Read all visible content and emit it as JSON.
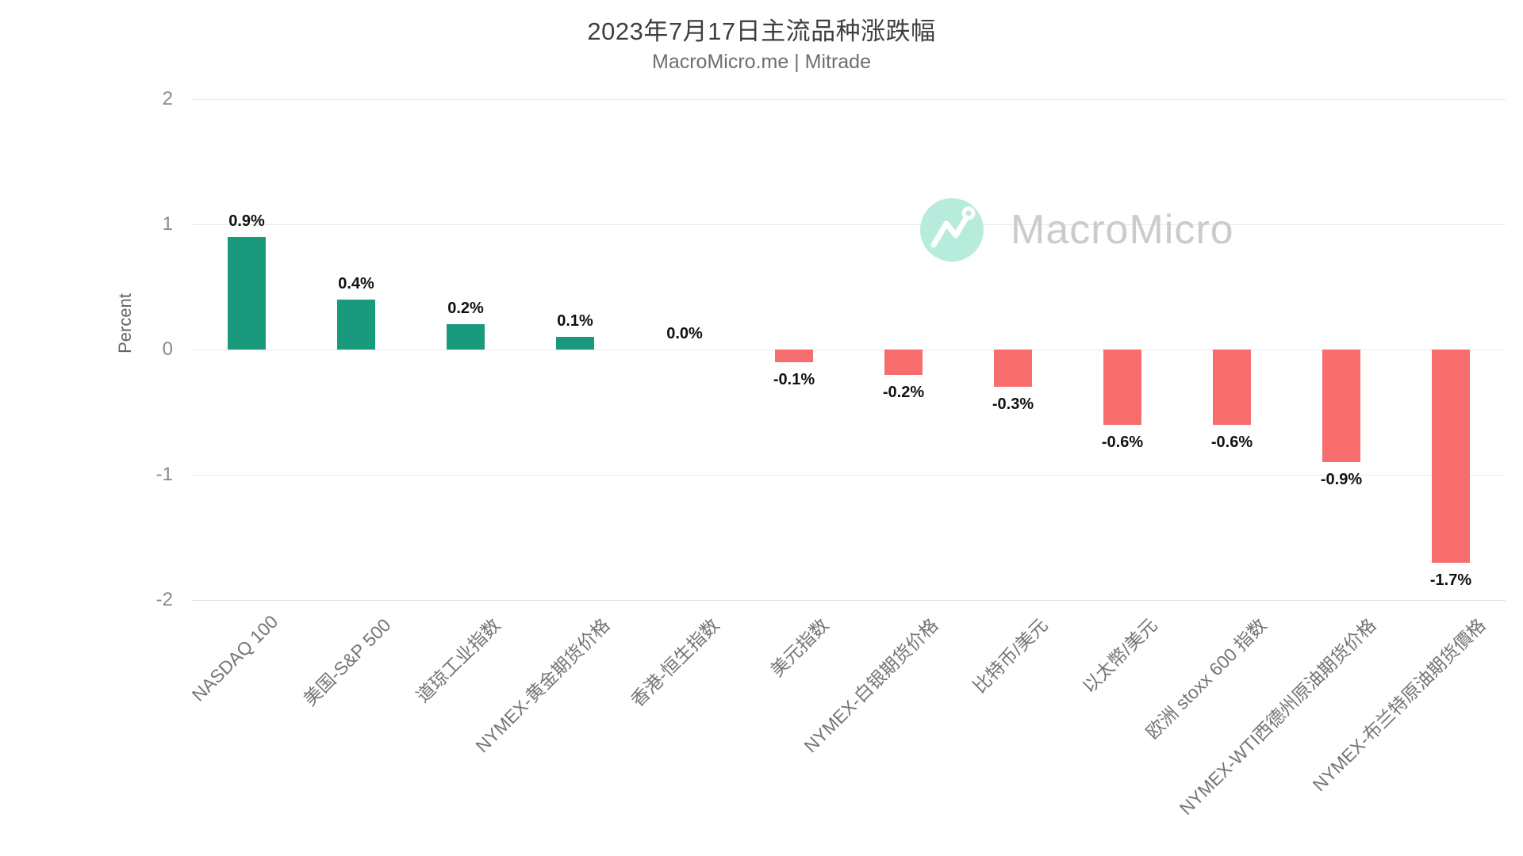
{
  "header": {
    "title": "2023年7月17日主流品种涨跌幅",
    "subtitle": "MacroMicro.me | Mitrade"
  },
  "watermark": {
    "icon": "macromicro-logo-icon",
    "brand_text": "MacroMicro",
    "circle_color": "#b7ecdc",
    "text_color": "#cbcbcb"
  },
  "chart_data": {
    "type": "bar",
    "title": "2023年7月17日主流品种涨跌幅",
    "subtitle": "MacroMicro.me | Mitrade",
    "xlabel": "",
    "ylabel": "Percent",
    "ylim": [
      -2,
      2
    ],
    "y_ticks": [
      "2",
      "1",
      "0",
      "-1",
      "-2"
    ],
    "grid": true,
    "legend_position": "none",
    "categories": [
      "NASDAQ 100",
      "美国-S&P 500",
      "道琼工业指数",
      "NYMEX-黄金期货价格",
      "香港-恒生指数",
      "美元指数",
      "NYMEX-白银期货价格",
      "比特币/美元",
      "以太幣/美元",
      "欧洲 stoxx 600 指数",
      "NYMEX-WTI西德州原油期货价格",
      "NYMEX-布兰特原油期货價格"
    ],
    "values": [
      0.9,
      0.4,
      0.2,
      0.1,
      0.0,
      -0.1,
      -0.2,
      -0.3,
      -0.6,
      -0.6,
      -0.9,
      -1.7
    ],
    "value_labels": [
      "0.9%",
      "0.4%",
      "0.2%",
      "0.1%",
      "0.0%",
      "-0.1%",
      "-0.2%",
      "-0.3%",
      "-0.6%",
      "-0.6%",
      "-0.9%",
      "-1.7%"
    ],
    "positive_color": "#1a9a7d",
    "negative_color": "#f76c6c",
    "gridline_color": "#e9e9e9",
    "bottom_line_color": "#dbe1ee",
    "tick_label_color": "#8a8a8a",
    "category_label_color": "#757575",
    "value_label_color": "#111111"
  }
}
